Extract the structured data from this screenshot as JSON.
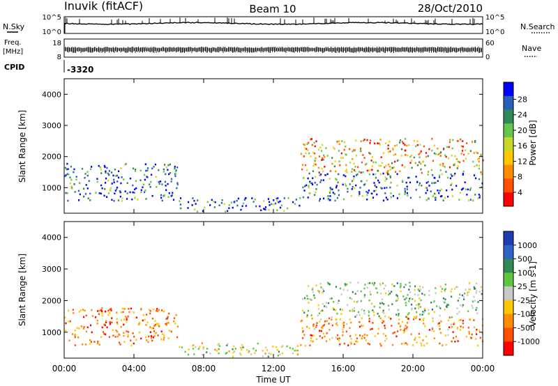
{
  "header": {
    "station": "Inuvik (fitACF)",
    "beam": "Beam 10",
    "date": "28/Oct/2010"
  },
  "status_panel": {
    "nsky_label": "N.Sky",
    "nsky_ticks": [
      "10^5",
      "10^0"
    ],
    "nsearch_label": "N.Search",
    "nsearch_ticks": [
      "10^5",
      "10^0"
    ],
    "freq_label": "Freq.",
    "freq_unit": "[MHz]",
    "freq_ticks": [
      "18",
      "8"
    ],
    "nave_label": "Nave",
    "nave_ticks": [
      "60",
      "0"
    ],
    "cpid_label": "CPID",
    "cpid_value": "-3320"
  },
  "x_axis": {
    "label": "Time UT",
    "ticks": [
      "00:00",
      "04:00",
      "08:00",
      "12:00",
      "16:00",
      "20:00",
      "00:00"
    ]
  },
  "chart_data": [
    {
      "type": "heatmap",
      "name": "power",
      "xlabel": "Time UT",
      "ylabel": "Slant Range [km]",
      "xlim": [
        0,
        24
      ],
      "ylim": [
        180,
        4500
      ],
      "yticks": [
        "1000",
        "2000",
        "3000",
        "4000"
      ],
      "colorbar": {
        "label": "Power [dB]",
        "ticks": [
          "4",
          "8",
          "12",
          "16",
          "20",
          "24",
          "28"
        ],
        "colors": [
          "#0000ff",
          "#2a5fb8",
          "#2e8b57",
          "#66c84a",
          "#c8d828",
          "#ffc800",
          "#ff8c00",
          "#ff5000",
          "#ff0000"
        ]
      },
      "regions": [
        {
          "t0": 0.0,
          "t1": 6.5,
          "r0": 600,
          "r1": 1800,
          "level": 0.85
        },
        {
          "t0": 6.5,
          "t1": 13.5,
          "r0": 250,
          "r1": 700,
          "level": 0.9
        },
        {
          "t0": 13.5,
          "t1": 24.0,
          "r0": 600,
          "r1": 1500,
          "level": 0.85
        },
        {
          "t0": 13.5,
          "t1": 24.0,
          "r0": 1500,
          "r1": 2600,
          "level": 0.35
        }
      ]
    },
    {
      "type": "heatmap",
      "name": "velocity",
      "xlabel": "Time UT",
      "ylabel": "Slant Range [km]",
      "xlim": [
        0,
        24
      ],
      "ylim": [
        180,
        4500
      ],
      "yticks": [
        "1000",
        "2000",
        "3000",
        "4000"
      ],
      "colorbar": {
        "label": "Velocity [m s-1]",
        "ticks": [
          "1000",
          "500",
          "100",
          "25",
          "-25",
          "-100",
          "-500",
          "-1000"
        ],
        "colors": [
          "#1e3cb4",
          "#2e64c8",
          "#2e8b57",
          "#5ac83c",
          "#c8c8c8",
          "#ffc800",
          "#ff8c00",
          "#ff5000",
          "#ff0000"
        ]
      },
      "regions": [
        {
          "t0": 0.0,
          "t1": 6.5,
          "r0": 600,
          "r1": 1800,
          "level": -0.6
        },
        {
          "t0": 6.5,
          "t1": 13.5,
          "r0": 250,
          "r1": 700,
          "level": 0.0
        },
        {
          "t0": 13.5,
          "t1": 24.0,
          "r0": 600,
          "r1": 1500,
          "level": -0.5
        },
        {
          "t0": 13.5,
          "t1": 24.0,
          "r0": 1500,
          "r1": 2600,
          "level": 0.2
        }
      ]
    }
  ]
}
